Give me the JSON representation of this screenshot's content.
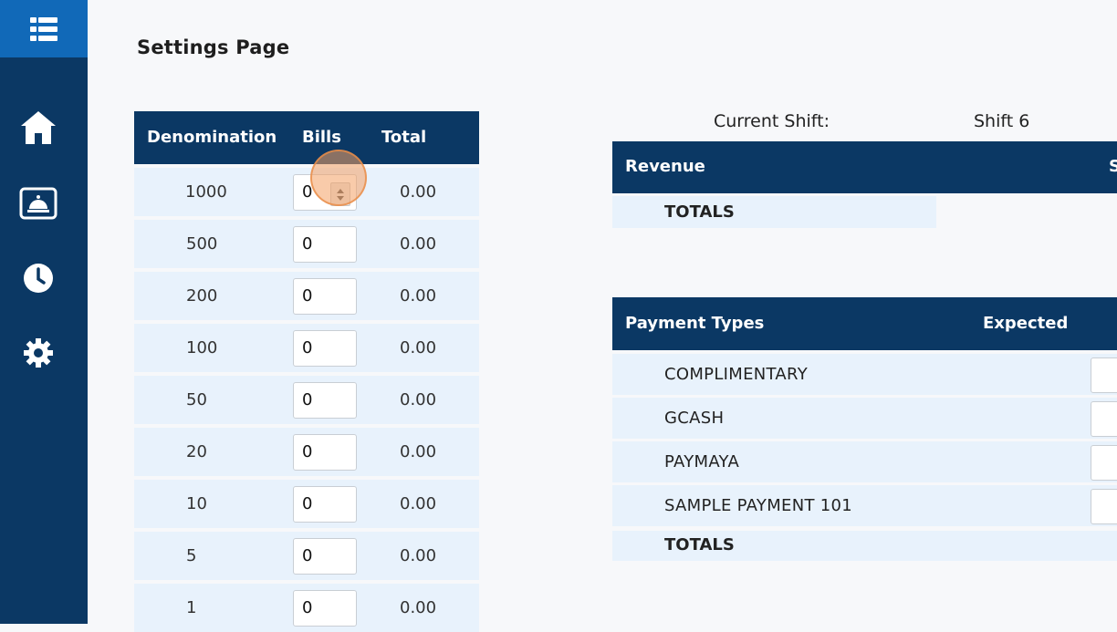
{
  "page": {
    "title": "Settings Page"
  },
  "sidebar": {
    "menu_icon": "list-menu-icon",
    "items": [
      {
        "icon": "home-icon"
      },
      {
        "icon": "service-bell-icon"
      },
      {
        "icon": "clock-icon"
      },
      {
        "icon": "gear-icon"
      }
    ]
  },
  "denominations": {
    "headers": {
      "denomination": "Denomination",
      "bills": "Bills",
      "total": "Total"
    },
    "rows": [
      {
        "denomination": "1000",
        "bills": "0",
        "total": "0.00"
      },
      {
        "denomination": "500",
        "bills": "0",
        "total": "0.00"
      },
      {
        "denomination": "200",
        "bills": "0",
        "total": "0.00"
      },
      {
        "denomination": "100",
        "bills": "0",
        "total": "0.00"
      },
      {
        "denomination": "50",
        "bills": "0",
        "total": "0.00"
      },
      {
        "denomination": "20",
        "bills": "0",
        "total": "0.00"
      },
      {
        "denomination": "10",
        "bills": "0",
        "total": "0.00"
      },
      {
        "denomination": "5",
        "bills": "0",
        "total": "0.00"
      },
      {
        "denomination": "1",
        "bills": "0",
        "total": "0.00"
      }
    ]
  },
  "shift": {
    "label": "Current Shift:",
    "value": "Shift 6"
  },
  "revenue": {
    "header": "Revenue",
    "header_partial": "S",
    "totals_label": "TOTALS"
  },
  "payments": {
    "headers": {
      "type": "Payment Types",
      "expected": "Expected"
    },
    "rows": [
      {
        "name": "COMPLIMENTARY"
      },
      {
        "name": "GCASH"
      },
      {
        "name": "PAYMAYA"
      },
      {
        "name": "SAMPLE PAYMENT 101"
      }
    ],
    "totals_label": "TOTALS"
  },
  "colors": {
    "navy": "#0b3864",
    "accent_blue": "#1169b8",
    "row_bg": "#e8f2fc"
  }
}
